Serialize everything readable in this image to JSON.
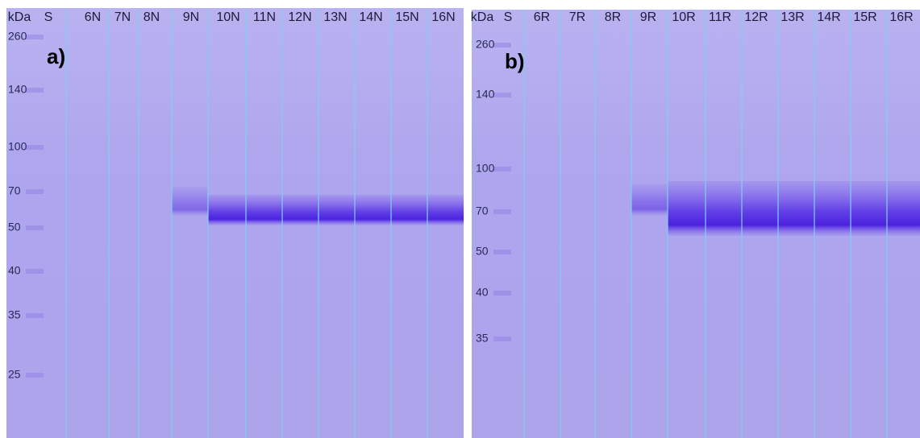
{
  "panels": [
    {
      "label": "a)",
      "unit": "kDa",
      "standard": "S",
      "lanes": [
        "6N",
        "7N",
        "8N",
        "9N",
        "10N",
        "11N",
        "12N",
        "13N",
        "14N",
        "15N",
        "16N"
      ],
      "markers": [
        260,
        140,
        100,
        70,
        50,
        40,
        35,
        25
      ]
    },
    {
      "label": "b)",
      "unit": "kDa",
      "standard": "S",
      "lanes": [
        "6R",
        "7R",
        "8R",
        "9R",
        "10R",
        "11R",
        "12R",
        "13R",
        "14R",
        "15R",
        "16R"
      ],
      "markers": [
        260,
        140,
        100,
        70,
        50,
        40,
        35
      ]
    }
  ]
}
